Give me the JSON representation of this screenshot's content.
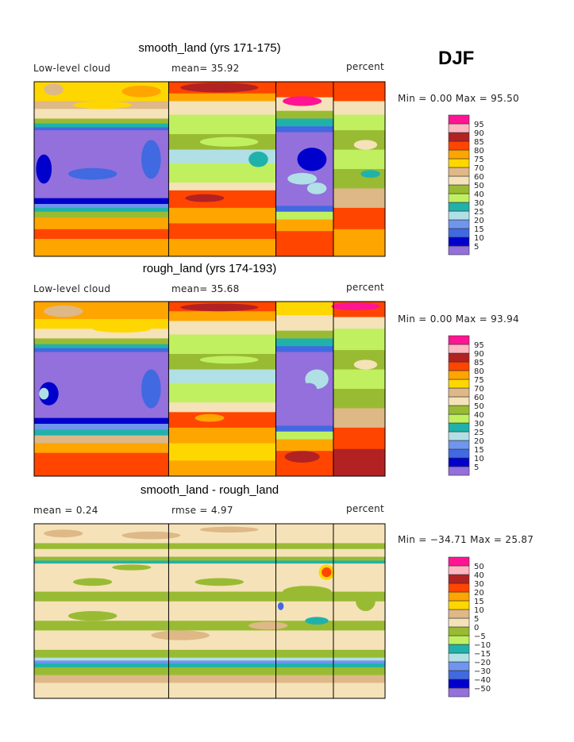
{
  "season": "DJF",
  "level_colors": [
    "#9370db",
    "#0000cd",
    "#4169e1",
    "#6f95ee",
    "#b0e0e6",
    "#20b2aa",
    "#c0f060",
    "#99bb33",
    "#f5e2b8",
    "#deb887",
    "#ffd700",
    "#ffa500",
    "#ff4500",
    "#b22222",
    "#ffb6c1",
    "#ff1493"
  ],
  "chart_data": [
    {
      "type": "heatmap",
      "title": "smooth_land (yrs 171-175)",
      "left_label": "Low-level cloud",
      "stat_label": "mean=  35.92",
      "units": "percent",
      "minmax": "Min =   0.00 Max =   95.50",
      "colorbar_labels": [
        "5",
        "10",
        "15",
        "20",
        "25",
        "30",
        "40",
        "50",
        "60",
        "70",
        "75",
        "80",
        "85",
        "90",
        "95"
      ],
      "segments": [
        {
          "lon": [
            0,
            138
          ],
          "bands": [
            [
              90,
              70,
              10
            ],
            [
              70,
              62,
              9
            ],
            [
              62,
              52,
              8
            ],
            [
              52,
              47,
              7
            ],
            [
              47,
              43,
              5
            ],
            [
              43,
              40,
              2
            ],
            [
              40,
              -30,
              0
            ],
            [
              -30,
              -36,
              1
            ],
            [
              -36,
              -40,
              3
            ],
            [
              -40,
              -44,
              5
            ],
            [
              -44,
              -50,
              7
            ],
            [
              -50,
              -62,
              11
            ],
            [
              -62,
              -72,
              12
            ],
            [
              -72,
              -90,
              11
            ]
          ],
          "blobs": [
            [
              20,
              82,
              10,
              6,
              9
            ],
            [
              70,
              66,
              30,
              4,
              10
            ],
            [
              110,
              80,
              20,
              6,
              11
            ],
            [
              10,
              0,
              8,
              15,
              1
            ],
            [
              60,
              -5,
              25,
              6,
              2
            ],
            [
              120,
              10,
              10,
              20,
              2
            ]
          ]
        },
        {
          "lon": [
            138,
            248
          ],
          "bands": [
            [
              90,
              78,
              12
            ],
            [
              78,
              70,
              11
            ],
            [
              70,
              56,
              8
            ],
            [
              56,
              36,
              6
            ],
            [
              36,
              20,
              7
            ],
            [
              20,
              6,
              4
            ],
            [
              6,
              -14,
              6
            ],
            [
              -14,
              -22,
              8
            ],
            [
              -22,
              -40,
              12
            ],
            [
              -40,
              -56,
              11
            ],
            [
              -56,
              -72,
              12
            ],
            [
              -72,
              -90,
              11
            ]
          ],
          "blobs": [
            [
              190,
              84,
              40,
              5,
              13
            ],
            [
              200,
              28,
              30,
              5,
              6
            ],
            [
              175,
              -30,
              20,
              4,
              13
            ],
            [
              230,
              10,
              10,
              8,
              5
            ]
          ]
        },
        {
          "lon": [
            248,
            307
          ],
          "bands": [
            [
              90,
              74,
              12
            ],
            [
              74,
              60,
              8
            ],
            [
              60,
              52,
              7
            ],
            [
              52,
              44,
              5
            ],
            [
              44,
              38,
              2
            ],
            [
              38,
              -38,
              0
            ],
            [
              -38,
              -44,
              2
            ],
            [
              -44,
              -52,
              6
            ],
            [
              -52,
              -64,
              11
            ],
            [
              -64,
              -90,
              12
            ]
          ],
          "blobs": [
            [
              275,
              70,
              20,
              5,
              15
            ],
            [
              285,
              10,
              15,
              12,
              1
            ],
            [
              275,
              -10,
              15,
              6,
              4
            ],
            [
              290,
              -20,
              10,
              6,
              4
            ]
          ]
        },
        {
          "lon": [
            307,
            360
          ],
          "bands": [
            [
              90,
              70,
              12
            ],
            [
              70,
              56,
              8
            ],
            [
              56,
              40,
              6
            ],
            [
              40,
              20,
              7
            ],
            [
              20,
              0,
              6
            ],
            [
              0,
              -20,
              7
            ],
            [
              -20,
              -40,
              9
            ],
            [
              -40,
              -62,
              12
            ],
            [
              -62,
              -90,
              11
            ]
          ],
          "blobs": [
            [
              340,
              25,
              12,
              5,
              8
            ],
            [
              345,
              -5,
              10,
              4,
              5
            ]
          ]
        }
      ]
    },
    {
      "type": "heatmap",
      "title": "rough_land (yrs 174-193)",
      "left_label": "Low-level cloud",
      "stat_label": "mean=  35.68",
      "units": "percent",
      "minmax": "Min =   0.00 Max =   93.94",
      "colorbar_labels": [
        "5",
        "10",
        "15",
        "20",
        "25",
        "30",
        "40",
        "50",
        "60",
        "70",
        "75",
        "80",
        "85",
        "90",
        "95"
      ],
      "segments": [
        {
          "lon": [
            0,
            138
          ],
          "bands": [
            [
              90,
              72,
              11
            ],
            [
              72,
              62,
              10
            ],
            [
              62,
              52,
              8
            ],
            [
              52,
              46,
              7
            ],
            [
              46,
              42,
              5
            ],
            [
              42,
              38,
              2
            ],
            [
              38,
              -30,
              0
            ],
            [
              -30,
              -36,
              1
            ],
            [
              -36,
              -42,
              3
            ],
            [
              -42,
              -48,
              5
            ],
            [
              -48,
              -56,
              9
            ],
            [
              -56,
              -66,
              11
            ],
            [
              -66,
              -90,
              12
            ]
          ],
          "blobs": [
            [
              30,
              80,
              20,
              6,
              9
            ],
            [
              90,
              62,
              30,
              4,
              10
            ],
            [
              15,
              -5,
              10,
              12,
              1
            ],
            [
              10,
              -5,
              5,
              6,
              4
            ],
            [
              120,
              0,
              10,
              20,
              2
            ]
          ]
        },
        {
          "lon": [
            138,
            248
          ],
          "bands": [
            [
              90,
              80,
              12
            ],
            [
              80,
              70,
              11
            ],
            [
              70,
              56,
              8
            ],
            [
              56,
              36,
              6
            ],
            [
              36,
              20,
              7
            ],
            [
              20,
              6,
              4
            ],
            [
              6,
              -14,
              6
            ],
            [
              -14,
              -24,
              8
            ],
            [
              -24,
              -40,
              12
            ],
            [
              -40,
              -56,
              11
            ],
            [
              -56,
              -74,
              10
            ],
            [
              -74,
              -90,
              11
            ]
          ],
          "blobs": [
            [
              190,
              84,
              40,
              4,
              13
            ],
            [
              180,
              -30,
              15,
              4,
              11
            ],
            [
              200,
              30,
              30,
              4,
              6
            ]
          ]
        },
        {
          "lon": [
            248,
            307
          ],
          "bands": [
            [
              90,
              76,
              10
            ],
            [
              76,
              60,
              8
            ],
            [
              60,
              52,
              7
            ],
            [
              52,
              44,
              5
            ],
            [
              44,
              38,
              2
            ],
            [
              38,
              -38,
              0
            ],
            [
              -38,
              -44,
              2
            ],
            [
              -44,
              -52,
              6
            ],
            [
              -52,
              -64,
              11
            ],
            [
              -64,
              -90,
              12
            ]
          ],
          "blobs": [
            [
              275,
              -70,
              18,
              6,
              13
            ],
            [
              290,
              10,
              12,
              10,
              4
            ],
            [
              282,
              0,
              8,
              6,
              0
            ]
          ]
        },
        {
          "lon": [
            307,
            360
          ],
          "bands": [
            [
              90,
              74,
              12
            ],
            [
              74,
              62,
              8
            ],
            [
              62,
              40,
              6
            ],
            [
              40,
              20,
              7
            ],
            [
              20,
              0,
              6
            ],
            [
              0,
              -20,
              7
            ],
            [
              -20,
              -40,
              9
            ],
            [
              -40,
              -62,
              12
            ],
            [
              -62,
              -90,
              13
            ]
          ],
          "blobs": [
            [
              330,
              85,
              25,
              4,
              15
            ],
            [
              340,
              25,
              12,
              5,
              8
            ]
          ]
        }
      ]
    },
    {
      "type": "heatmap",
      "title": "smooth_land - rough_land",
      "left_label": "mean =    0.24",
      "stat_label": "rmse =    4.97",
      "units": "percent",
      "minmax": "Min = −34.71 Max =   25.87",
      "colorbar_labels": [
        "−50",
        "−40",
        "−30",
        "−20",
        "−15",
        "−10",
        "−5",
        "0",
        "5",
        "10",
        "15",
        "20",
        "30",
        "40",
        "50"
      ],
      "segments": [
        {
          "lon": [
            0,
            360
          ],
          "bands": [
            [
              90,
              70,
              8
            ],
            [
              70,
              64,
              7
            ],
            [
              64,
              56,
              8
            ],
            [
              56,
              52,
              7
            ],
            [
              52,
              49,
              5
            ],
            [
              49,
              44,
              8
            ],
            [
              44,
              20,
              8
            ],
            [
              20,
              10,
              7
            ],
            [
              10,
              -10,
              8
            ],
            [
              -10,
              -20,
              7
            ],
            [
              -20,
              -40,
              8
            ],
            [
              -40,
              -48,
              7
            ],
            [
              -48,
              -51,
              4
            ],
            [
              -51,
              -54,
              3
            ],
            [
              -54,
              -58,
              5
            ],
            [
              -58,
              -66,
              7
            ],
            [
              -66,
              -74,
              9
            ],
            [
              -74,
              -90,
              8
            ]
          ],
          "blobs": [
            [
              30,
              80,
              20,
              4,
              9
            ],
            [
              120,
              78,
              30,
              4,
              9
            ],
            [
              200,
              84,
              30,
              3,
              9
            ],
            [
              60,
              30,
              20,
              4,
              7
            ],
            [
              190,
              30,
              25,
              4,
              7
            ],
            [
              280,
              20,
              25,
              6,
              7
            ],
            [
              60,
              -5,
              25,
              5,
              7
            ],
            [
              150,
              -25,
              30,
              5,
              9
            ],
            [
              240,
              -15,
              20,
              4,
              9
            ],
            [
              300,
              40,
              8,
              8,
              10
            ],
            [
              300,
              40,
              5,
              5,
              12
            ],
            [
              253,
              5,
              3,
              4,
              2
            ],
            [
              290,
              -10,
              12,
              4,
              5
            ],
            [
              340,
              10,
              10,
              10,
              7
            ],
            [
              100,
              45,
              20,
              3,
              7
            ]
          ]
        }
      ]
    }
  ]
}
